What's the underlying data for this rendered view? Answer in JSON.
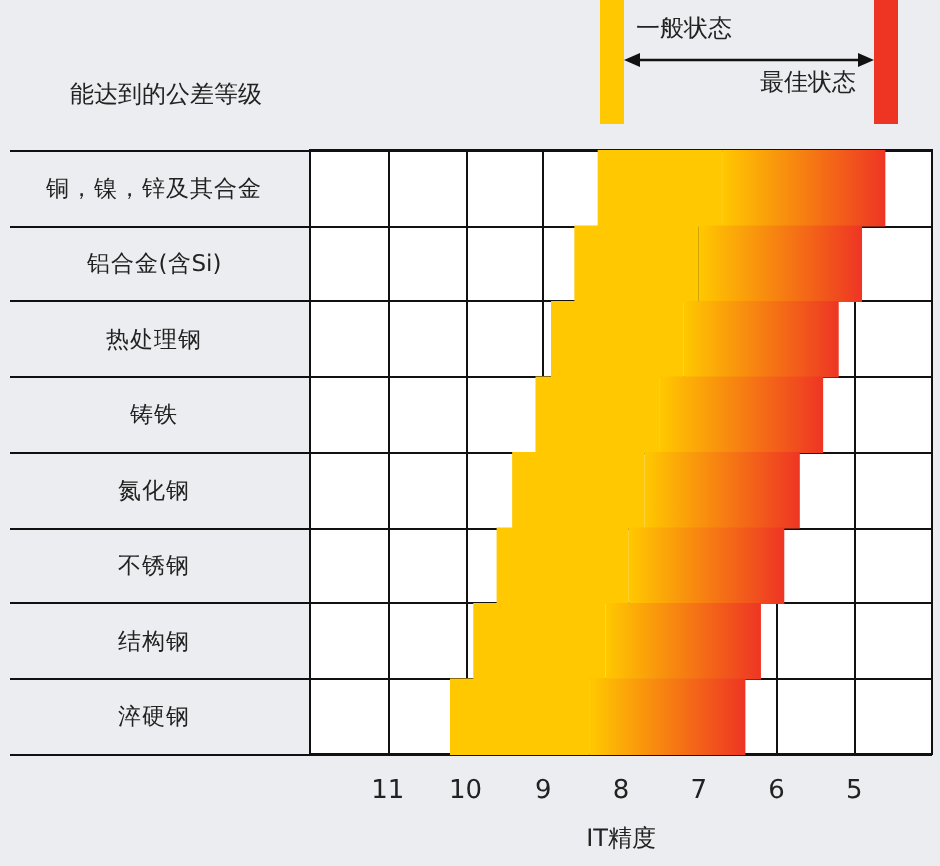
{
  "chart_data": {
    "type": "bar",
    "orientation": "horizontal",
    "title": "能达到的公差等级",
    "xlabel": "IT精度",
    "categories": [
      "铜，镍，锌及其合金",
      "铝合金(含Si)",
      "热处理钢",
      "铸铁",
      "氮化钢",
      "不锈钢",
      "结构钢",
      "淬硬钢"
    ],
    "series": [
      {
        "name": "一般状态",
        "color": "#ffc800",
        "base": [
          8.3,
          8.6,
          8.9,
          9.1,
          9.4,
          9.6,
          9.9,
          10.2
        ],
        "values": [
          -1.6,
          -1.6,
          -1.7,
          -1.6,
          -1.7,
          -1.7,
          -1.7,
          -1.8
        ]
      },
      {
        "name": "最佳状态",
        "color": "#ee3524",
        "base": [
          6.7,
          7.0,
          7.2,
          7.5,
          7.7,
          7.9,
          8.2,
          8.4
        ],
        "values": [
          -2.1,
          -2.1,
          -2.0,
          -2.1,
          -2.0,
          -2.0,
          -2.0,
          -2.0
        ]
      }
    ],
    "xlim": [
      12,
      4
    ],
    "xticks": [
      11,
      10,
      9,
      8,
      7,
      6,
      5
    ],
    "grid": true,
    "legend": "top right"
  }
}
